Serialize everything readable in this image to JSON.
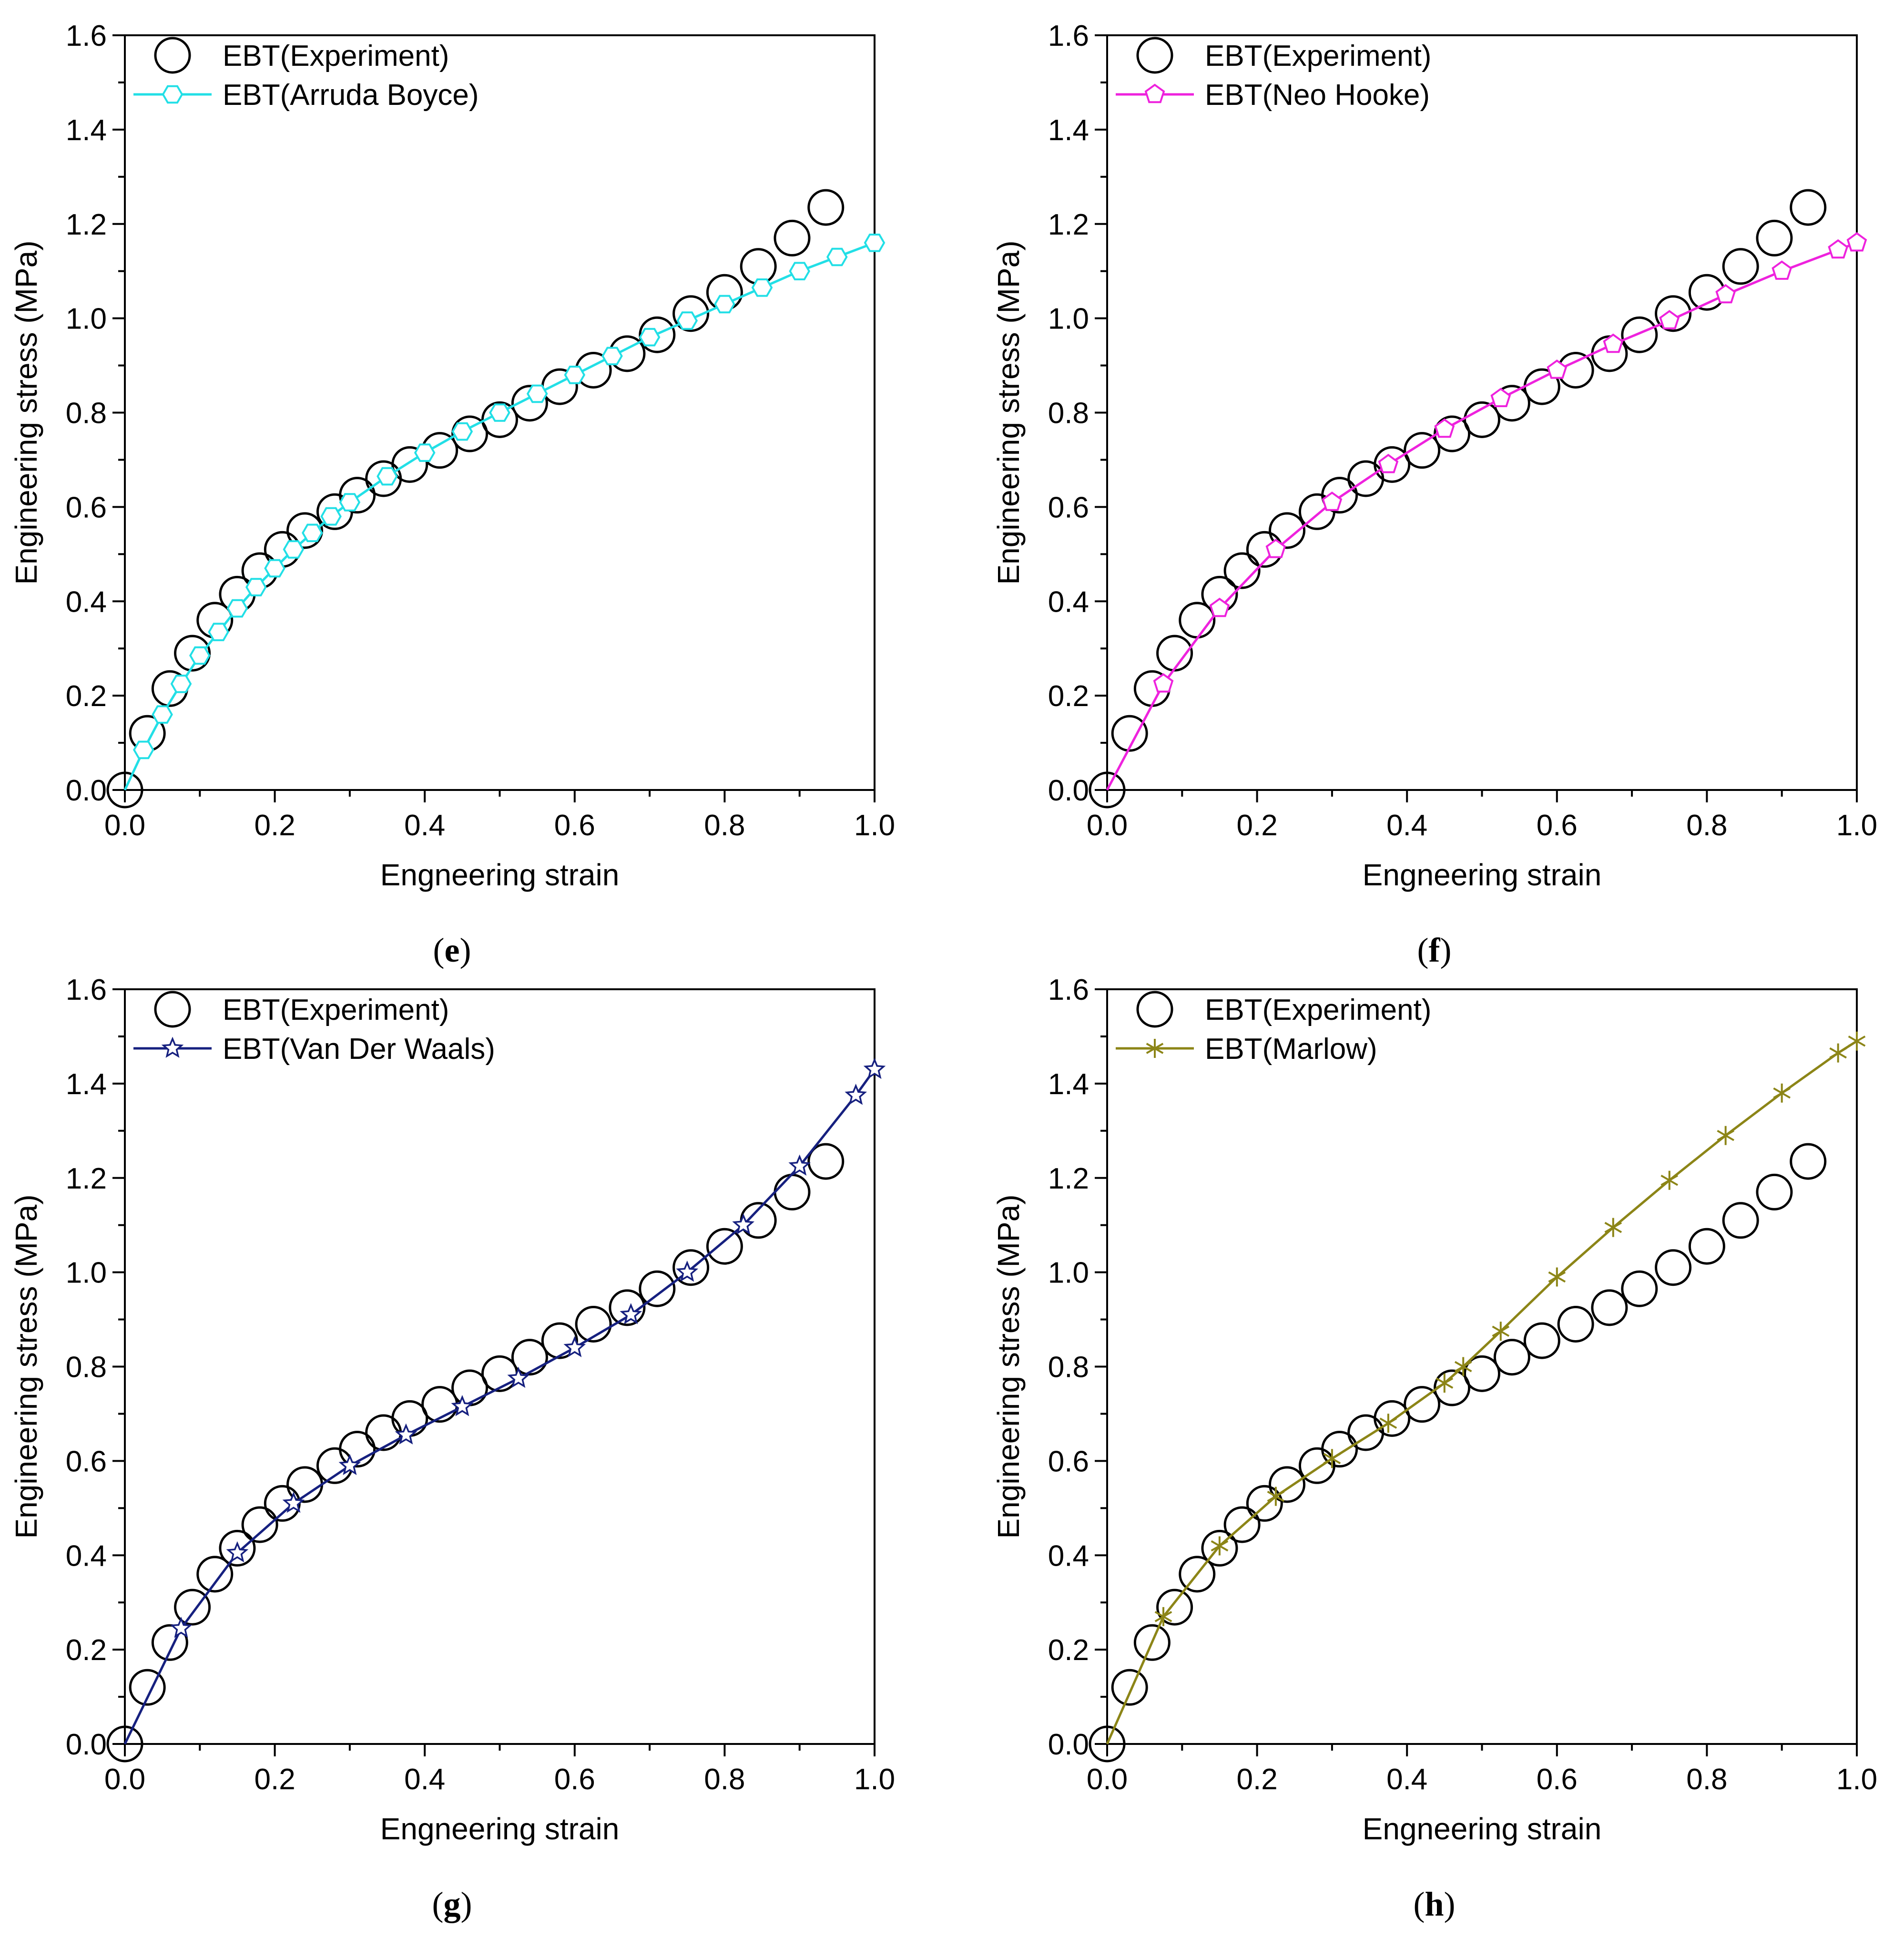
{
  "chart_data": [
    {
      "type": "line",
      "panel_label": "e",
      "title": "",
      "xlabel": "Engneering strain",
      "ylabel": "Engineering stress (MPa)",
      "xlim": [
        0.0,
        1.0
      ],
      "ylim": [
        0.0,
        1.6
      ],
      "xticks": [
        "0.0",
        "0.2",
        "0.4",
        "0.6",
        "0.8",
        "1.0"
      ],
      "yticks": [
        "0.0",
        "0.2",
        "0.4",
        "0.6",
        "0.8",
        "1.0",
        "1.2",
        "1.4",
        "1.6"
      ],
      "legend_position": "top-left",
      "series": [
        {
          "name": "EBT(Experiment)",
          "style": "markers",
          "marker": "circle",
          "color": "#000000",
          "x": [
            0.0,
            0.03,
            0.06,
            0.09,
            0.12,
            0.15,
            0.18,
            0.21,
            0.24,
            0.28,
            0.31,
            0.345,
            0.38,
            0.42,
            0.46,
            0.5,
            0.54,
            0.58,
            0.625,
            0.67,
            0.71,
            0.755,
            0.8,
            0.845,
            0.89,
            0.935
          ],
          "y": [
            0.0,
            0.12,
            0.215,
            0.29,
            0.36,
            0.415,
            0.465,
            0.51,
            0.55,
            0.59,
            0.625,
            0.66,
            0.69,
            0.72,
            0.755,
            0.785,
            0.82,
            0.855,
            0.89,
            0.925,
            0.965,
            1.01,
            1.055,
            1.11,
            1.17,
            1.235
          ]
        },
        {
          "name": "EBT(Arruda Boyce)",
          "style": "line+markers",
          "marker": "hexagon",
          "color": "#22dfe6",
          "x": [
            0.0,
            0.025,
            0.05,
            0.075,
            0.1,
            0.125,
            0.15,
            0.175,
            0.2,
            0.225,
            0.25,
            0.275,
            0.3,
            0.35,
            0.4,
            0.45,
            0.5,
            0.55,
            0.6,
            0.65,
            0.7,
            0.75,
            0.8,
            0.85,
            0.9,
            0.95,
            1.0
          ],
          "y": [
            0.0,
            0.085,
            0.16,
            0.225,
            0.285,
            0.335,
            0.385,
            0.43,
            0.47,
            0.51,
            0.545,
            0.58,
            0.61,
            0.665,
            0.715,
            0.76,
            0.8,
            0.84,
            0.88,
            0.92,
            0.96,
            0.995,
            1.03,
            1.065,
            1.1,
            1.13,
            1.16
          ]
        }
      ]
    },
    {
      "type": "line",
      "panel_label": "f",
      "title": "",
      "xlabel": "Engneering strain",
      "ylabel": "Engineering stress (MPa)",
      "xlim": [
        0.0,
        1.0
      ],
      "ylim": [
        0.0,
        1.6
      ],
      "xticks": [
        "0.0",
        "0.2",
        "0.4",
        "0.6",
        "0.8",
        "1.0"
      ],
      "yticks": [
        "0.0",
        "0.2",
        "0.4",
        "0.6",
        "0.8",
        "1.0",
        "1.2",
        "1.4",
        "1.6"
      ],
      "legend_position": "top-left",
      "series": [
        {
          "name": "EBT(Experiment)",
          "style": "markers",
          "marker": "circle",
          "color": "#000000",
          "x": [
            0.0,
            0.03,
            0.06,
            0.09,
            0.12,
            0.15,
            0.18,
            0.21,
            0.24,
            0.28,
            0.31,
            0.345,
            0.38,
            0.42,
            0.46,
            0.5,
            0.54,
            0.58,
            0.625,
            0.67,
            0.71,
            0.755,
            0.8,
            0.845,
            0.89,
            0.935
          ],
          "y": [
            0.0,
            0.12,
            0.215,
            0.29,
            0.36,
            0.415,
            0.465,
            0.51,
            0.55,
            0.59,
            0.625,
            0.66,
            0.69,
            0.72,
            0.755,
            0.785,
            0.82,
            0.855,
            0.89,
            0.925,
            0.965,
            1.01,
            1.055,
            1.11,
            1.17,
            1.235
          ]
        },
        {
          "name": "EBT(Neo Hooke)",
          "style": "line+markers",
          "marker": "pentagon",
          "color": "#ee22dd",
          "x": [
            0.0,
            0.075,
            0.15,
            0.225,
            0.3,
            0.375,
            0.45,
            0.525,
            0.6,
            0.675,
            0.75,
            0.825,
            0.9,
            0.975,
            1.0
          ],
          "y": [
            0.0,
            0.225,
            0.385,
            0.51,
            0.61,
            0.69,
            0.765,
            0.83,
            0.89,
            0.945,
            0.995,
            1.05,
            1.1,
            1.145,
            1.16
          ]
        }
      ]
    },
    {
      "type": "line",
      "panel_label": "g",
      "title": "",
      "xlabel": "Engneering strain",
      "ylabel": "Engineering stress (MPa)",
      "xlim": [
        0.0,
        1.0
      ],
      "ylim": [
        0.0,
        1.6
      ],
      "xticks": [
        "0.0",
        "0.2",
        "0.4",
        "0.6",
        "0.8",
        "1.0"
      ],
      "yticks": [
        "0.0",
        "0.2",
        "0.4",
        "0.6",
        "0.8",
        "1.0",
        "1.2",
        "1.4",
        "1.6"
      ],
      "legend_position": "top-left",
      "series": [
        {
          "name": "EBT(Experiment)",
          "style": "markers",
          "marker": "circle",
          "color": "#000000",
          "x": [
            0.0,
            0.03,
            0.06,
            0.09,
            0.12,
            0.15,
            0.18,
            0.21,
            0.24,
            0.28,
            0.31,
            0.345,
            0.38,
            0.42,
            0.46,
            0.5,
            0.54,
            0.58,
            0.625,
            0.67,
            0.71,
            0.755,
            0.8,
            0.845,
            0.89,
            0.935
          ],
          "y": [
            0.0,
            0.12,
            0.215,
            0.29,
            0.36,
            0.415,
            0.465,
            0.51,
            0.55,
            0.59,
            0.625,
            0.66,
            0.69,
            0.72,
            0.755,
            0.785,
            0.82,
            0.855,
            0.89,
            0.925,
            0.965,
            1.01,
            1.055,
            1.11,
            1.17,
            1.235
          ]
        },
        {
          "name": "EBT(Van Der Waals)",
          "style": "line+markers",
          "marker": "star",
          "color": "#16207f",
          "x": [
            0.0,
            0.075,
            0.15,
            0.225,
            0.3,
            0.375,
            0.45,
            0.525,
            0.6,
            0.675,
            0.75,
            0.825,
            0.9,
            0.975,
            1.0
          ],
          "y": [
            0.0,
            0.245,
            0.405,
            0.51,
            0.59,
            0.655,
            0.715,
            0.775,
            0.84,
            0.91,
            1.0,
            1.1,
            1.225,
            1.375,
            1.43
          ]
        }
      ]
    },
    {
      "type": "line",
      "panel_label": "h",
      "title": "",
      "xlabel": "Engneering strain",
      "ylabel": "Engineering stress (MPa)",
      "xlim": [
        0.0,
        1.0
      ],
      "ylim": [
        0.0,
        1.6
      ],
      "xticks": [
        "0.0",
        "0.2",
        "0.4",
        "0.6",
        "0.8",
        "1.0"
      ],
      "yticks": [
        "0.0",
        "0.2",
        "0.4",
        "0.6",
        "0.8",
        "1.0",
        "1.2",
        "1.4",
        "1.6"
      ],
      "legend_position": "top-left",
      "series": [
        {
          "name": "EBT(Experiment)",
          "style": "markers",
          "marker": "circle",
          "color": "#000000",
          "x": [
            0.0,
            0.03,
            0.06,
            0.09,
            0.12,
            0.15,
            0.18,
            0.21,
            0.24,
            0.28,
            0.31,
            0.345,
            0.38,
            0.42,
            0.46,
            0.5,
            0.54,
            0.58,
            0.625,
            0.67,
            0.71,
            0.755,
            0.8,
            0.845,
            0.89,
            0.935
          ],
          "y": [
            0.0,
            0.12,
            0.215,
            0.29,
            0.36,
            0.415,
            0.465,
            0.51,
            0.55,
            0.59,
            0.625,
            0.66,
            0.69,
            0.72,
            0.755,
            0.785,
            0.82,
            0.855,
            0.89,
            0.925,
            0.965,
            1.01,
            1.055,
            1.11,
            1.17,
            1.235
          ]
        },
        {
          "name": "EBT(Marlow)",
          "style": "line+markers",
          "marker": "asterisk",
          "color": "#8c8517",
          "x": [
            0.0,
            0.075,
            0.15,
            0.225,
            0.3,
            0.375,
            0.45,
            0.475,
            0.525,
            0.6,
            0.675,
            0.75,
            0.825,
            0.9,
            0.975,
            1.0
          ],
          "y": [
            0.0,
            0.27,
            0.42,
            0.525,
            0.605,
            0.68,
            0.765,
            0.8,
            0.875,
            0.99,
            1.095,
            1.195,
            1.29,
            1.38,
            1.465,
            1.49
          ]
        }
      ]
    }
  ]
}
